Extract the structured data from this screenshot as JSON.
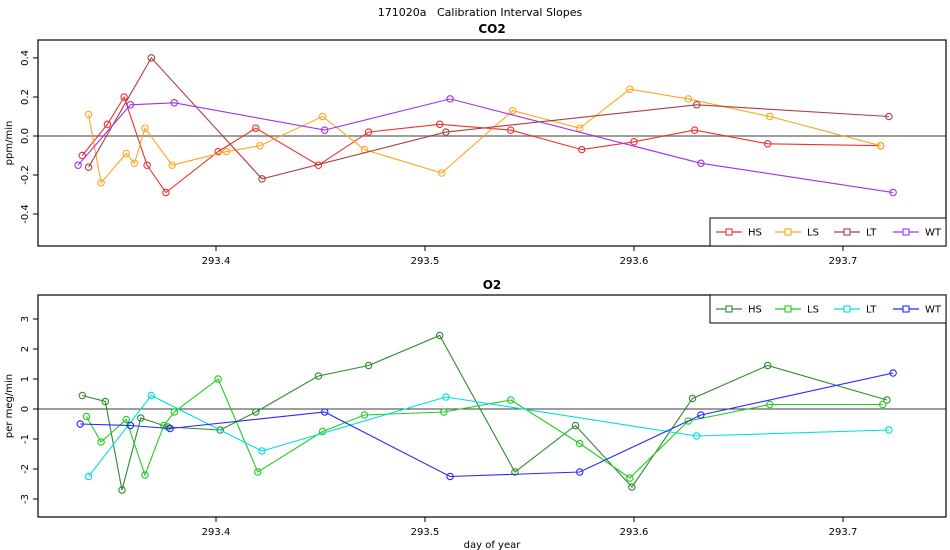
{
  "page_title": "171020a   Calibration Interval Slopes",
  "chart_data": [
    {
      "type": "line",
      "title": "CO2",
      "xlabel": "",
      "ylabel": "ppm/min",
      "xlim": [
        293.3148,
        293.7493
      ],
      "ylim": [
        -0.564,
        0.492
      ],
      "x_tick_values": [
        293.4,
        293.5,
        293.6,
        293.7
      ],
      "x_tick_labels": [
        "293.4",
        "293.5",
        "293.6",
        "293.7"
      ],
      "y_tick_values": [
        0.4,
        0.2,
        0.0,
        -0.2,
        -0.4
      ],
      "y_tick_labels": [
        "0.4",
        "0.2",
        "0.0",
        "-0.2",
        "-0.4"
      ],
      "zero_line": true,
      "zero_line_color": "#7f7f7f",
      "grid": false,
      "marker": "open-circle",
      "legend": {
        "labels": [
          "HS",
          "LS",
          "LT",
          "WT"
        ],
        "position": "bottom-right"
      },
      "series": [
        {
          "name": "HS",
          "color": "#f03030",
          "points": [
            [
              293.336,
              -0.1
            ],
            [
              293.348,
              0.06
            ],
            [
              293.356,
              0.2
            ],
            [
              293.367,
              -0.15
            ],
            [
              293.376,
              -0.29
            ],
            [
              293.401,
              -0.08
            ],
            [
              293.419,
              0.04
            ],
            [
              293.449,
              -0.15
            ],
            [
              293.473,
              0.02
            ],
            [
              293.507,
              0.06
            ],
            [
              293.541,
              0.03
            ],
            [
              293.575,
              -0.07
            ],
            [
              293.6,
              -0.03
            ],
            [
              293.629,
              0.03
            ],
            [
              293.664,
              -0.04
            ],
            [
              293.718,
              -0.05
            ]
          ]
        },
        {
          "name": "LS",
          "color": "#ffa520",
          "points": [
            [
              293.339,
              0.11
            ],
            [
              293.345,
              -0.24
            ],
            [
              293.357,
              -0.09
            ],
            [
              293.361,
              -0.14
            ],
            [
              293.366,
              0.04
            ],
            [
              293.379,
              -0.15
            ],
            [
              293.405,
              -0.08
            ],
            [
              293.421,
              -0.05
            ],
            [
              293.451,
              0.1
            ],
            [
              293.471,
              -0.07
            ],
            [
              293.508,
              -0.19
            ],
            [
              293.542,
              0.13
            ],
            [
              293.574,
              0.04
            ],
            [
              293.598,
              0.24
            ],
            [
              293.626,
              0.19
            ],
            [
              293.665,
              0.1
            ],
            [
              293.718,
              -0.05
            ]
          ]
        },
        {
          "name": "LT",
          "color": "#a94040",
          "points": [
            [
              293.339,
              -0.16
            ],
            [
              293.369,
              0.4
            ],
            [
              293.422,
              -0.22
            ],
            [
              293.51,
              0.02
            ],
            [
              293.63,
              0.16
            ],
            [
              293.722,
              0.1
            ]
          ]
        },
        {
          "name": "WT",
          "color": "#a030f0",
          "points": [
            [
              293.334,
              -0.15
            ],
            [
              293.359,
              0.16
            ],
            [
              293.38,
              0.17
            ],
            [
              293.452,
              0.03
            ],
            [
              293.512,
              0.19
            ],
            [
              293.632,
              -0.14
            ],
            [
              293.724,
              -0.29
            ]
          ]
        }
      ]
    },
    {
      "type": "line",
      "title": "O2",
      "xlabel": "day of year",
      "ylabel": "per meg/min",
      "xlim": [
        293.3148,
        293.7493
      ],
      "ylim": [
        -3.6,
        3.8
      ],
      "x_tick_values": [
        293.4,
        293.5,
        293.6,
        293.7
      ],
      "x_tick_labels": [
        "293.4",
        "293.5",
        "293.6",
        "293.7"
      ],
      "y_tick_values": [
        3,
        2,
        1,
        0,
        -1,
        -2,
        -3
      ],
      "y_tick_labels": [
        "3",
        "2",
        "1",
        "0",
        "-1",
        "-2",
        "-3"
      ],
      "zero_line": true,
      "zero_line_color": "#3c3c3c",
      "grid": false,
      "marker": "open-circle",
      "legend": {
        "labels": [
          "HS",
          "LS",
          "LT",
          "WT"
        ],
        "position": "top-right"
      },
      "series": [
        {
          "name": "HS",
          "color": "#2e8b2e",
          "points": [
            [
              293.336,
              0.45
            ],
            [
              293.347,
              0.25
            ],
            [
              293.355,
              -2.7
            ],
            [
              293.364,
              -0.3
            ],
            [
              293.377,
              -0.6
            ],
            [
              293.402,
              -0.7
            ],
            [
              293.419,
              -0.1
            ],
            [
              293.449,
              1.1
            ],
            [
              293.473,
              1.45
            ],
            [
              293.507,
              2.45
            ],
            [
              293.543,
              -2.1
            ],
            [
              293.572,
              -0.55
            ],
            [
              293.599,
              -2.6
            ],
            [
              293.628,
              0.35
            ],
            [
              293.664,
              1.45
            ],
            [
              293.721,
              0.3
            ]
          ]
        },
        {
          "name": "LS",
          "color": "#22cc22",
          "points": [
            [
              293.338,
              -0.25
            ],
            [
              293.345,
              -1.1
            ],
            [
              293.357,
              -0.35
            ],
            [
              293.366,
              -2.2
            ],
            [
              293.375,
              -0.55
            ],
            [
              293.38,
              -0.1
            ],
            [
              293.401,
              1.0
            ],
            [
              293.42,
              -2.1
            ],
            [
              293.451,
              -0.75
            ],
            [
              293.471,
              -0.2
            ],
            [
              293.509,
              -0.1
            ],
            [
              293.541,
              0.3
            ],
            [
              293.574,
              -1.15
            ],
            [
              293.598,
              -2.3
            ],
            [
              293.626,
              -0.4
            ],
            [
              293.665,
              0.15
            ],
            [
              293.719,
              0.15
            ]
          ]
        },
        {
          "name": "LT",
          "color": "#00e0e0",
          "points": [
            [
              293.339,
              -2.25
            ],
            [
              293.369,
              0.45
            ],
            [
              293.422,
              -1.4
            ],
            [
              293.51,
              0.4
            ],
            [
              293.63,
              -0.9
            ],
            [
              293.722,
              -0.7
            ]
          ]
        },
        {
          "name": "WT",
          "color": "#2828ff",
          "points": [
            [
              293.335,
              -0.5
            ],
            [
              293.359,
              -0.55
            ],
            [
              293.378,
              -0.65
            ],
            [
              293.452,
              -0.1
            ],
            [
              293.512,
              -2.25
            ],
            [
              293.574,
              -2.1
            ],
            [
              293.632,
              -0.2
            ],
            [
              293.724,
              1.2
            ]
          ]
        }
      ]
    }
  ]
}
